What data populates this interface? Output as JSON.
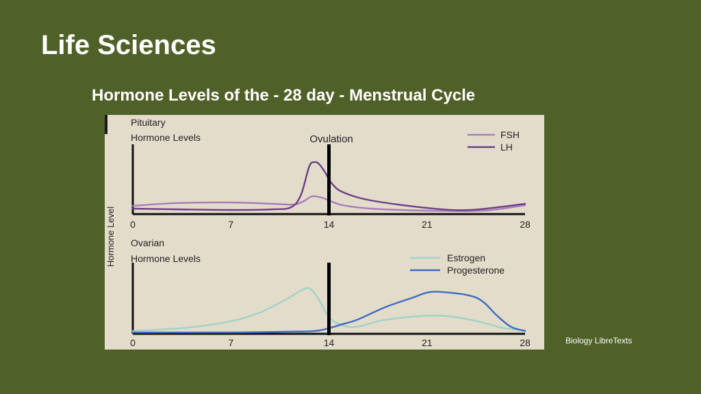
{
  "slide": {
    "title": "Life Sciences",
    "source": "Biology LibreTexts"
  },
  "colors": {
    "background": "#4f6128",
    "panel": "#e4dccb",
    "fsh": "#a97cb8",
    "lh": "#6a3d87",
    "estrogen": "#9fd3c7",
    "progesterone": "#3e6bbf"
  },
  "chart_data": {
    "title": "Hormone Levels of the - 28 day - Menstrual Cycle",
    "ylabel": "Hormone Level",
    "marker": {
      "x": 14,
      "label": "Ovulation"
    },
    "panels": [
      {
        "name": "Pituitary Hormone Levels",
        "label_lines": [
          "Pituitary",
          "Hormone Levels"
        ],
        "type": "line",
        "x_ticks": [
          0,
          7,
          14,
          21,
          28
        ],
        "xlim": [
          0,
          28
        ],
        "ylim": [
          0,
          100
        ],
        "series": [
          {
            "name": "FSH",
            "color": "#a97cb8",
            "points": [
              [
                0,
                12
              ],
              [
                3,
                16
              ],
              [
                7,
                17
              ],
              [
                10,
                15
              ],
              [
                11.5,
                14
              ],
              [
                12.2,
                19
              ],
              [
                12.8,
                26
              ],
              [
                13.5,
                24
              ],
              [
                14,
                20
              ],
              [
                15,
                13
              ],
              [
                17,
                8
              ],
              [
                21,
                5
              ],
              [
                25,
                5
              ],
              [
                28,
                13
              ]
            ]
          },
          {
            "name": "LH",
            "color": "#6a3d87",
            "points": [
              [
                0,
                8
              ],
              [
                3,
                7
              ],
              [
                7,
                6
              ],
              [
                10,
                7
              ],
              [
                11.3,
                10
              ],
              [
                12,
                28
              ],
              [
                12.6,
                70
              ],
              [
                13,
                76
              ],
              [
                13.3,
                73
              ],
              [
                13.7,
                62
              ],
              [
                14.2,
                45
              ],
              [
                15,
                32
              ],
              [
                17,
                20
              ],
              [
                21,
                9
              ],
              [
                24,
                6
              ],
              [
                28,
                15
              ]
            ]
          }
        ]
      },
      {
        "name": "Ovarian Hormone Levels",
        "label_lines": [
          "Ovarian",
          "Hormone Levels"
        ],
        "type": "line",
        "x_ticks": [
          0,
          7,
          14,
          21,
          28
        ],
        "xlim": [
          0,
          28
        ],
        "ylim": [
          0,
          100
        ],
        "series": [
          {
            "name": "Estrogen",
            "color": "#9fd3c7",
            "points": [
              [
                0,
                4
              ],
              [
                4,
                9
              ],
              [
                7,
                18
              ],
              [
                9,
                30
              ],
              [
                11,
                50
              ],
              [
                12,
                62
              ],
              [
                12.6,
                65
              ],
              [
                13.2,
                52
              ],
              [
                14,
                24
              ],
              [
                15,
                12
              ],
              [
                16,
                10
              ],
              [
                18,
                20
              ],
              [
                21,
                26
              ],
              [
                23,
                24
              ],
              [
                25,
                16
              ],
              [
                26.5,
                8
              ],
              [
                28,
                5
              ]
            ]
          },
          {
            "name": "Progesterone",
            "color": "#3e6bbf",
            "points": [
              [
                0,
                2
              ],
              [
                7,
                2
              ],
              [
                11,
                3
              ],
              [
                13,
                4
              ],
              [
                14,
                8
              ],
              [
                15,
                14
              ],
              [
                16,
                20
              ],
              [
                18,
                38
              ],
              [
                20,
                52
              ],
              [
                21,
                59
              ],
              [
                22,
                60
              ],
              [
                24,
                55
              ],
              [
                25,
                46
              ],
              [
                26,
                26
              ],
              [
                27,
                10
              ],
              [
                28,
                4
              ]
            ]
          }
        ]
      }
    ]
  }
}
